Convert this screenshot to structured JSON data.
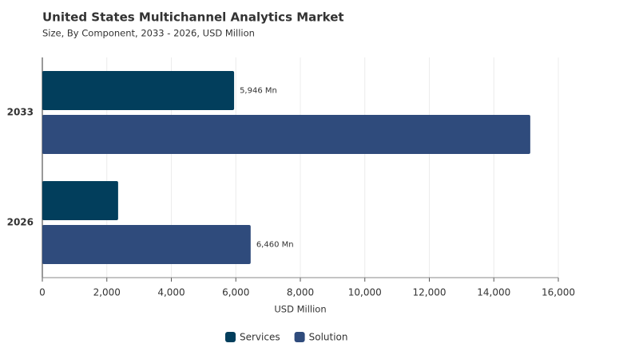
{
  "chart_data": {
    "type": "bar",
    "orientation": "horizontal",
    "title": "United States Multichannel Analytics Market",
    "subtitle": "Size, By Component, 2033 - 2026, USD Million",
    "x_label": "USD Million",
    "categories": [
      "2033",
      "2026"
    ],
    "series": [
      {
        "name": "Services",
        "color": "#023e5c",
        "values": [
          5946,
          2350
        ],
        "value_labels": [
          "5,946 Mn",
          null
        ]
      },
      {
        "name": "Solution",
        "color": "#2f4b7c",
        "values": [
          15130,
          6460
        ],
        "value_labels": [
          null,
          "6,460 Mn"
        ]
      }
    ],
    "xlim": [
      0,
      16000
    ],
    "xticks": [
      0,
      {
        "value": 2000,
        "label": "2,000"
      },
      {
        "value": 4000,
        "label": "4,000"
      },
      {
        "value": 6000,
        "label": "6,000"
      },
      {
        "value": 8000,
        "label": "8,000"
      },
      {
        "value": 10000,
        "label": "10,000"
      },
      {
        "value": 12000,
        "label": "12,000"
      },
      {
        "value": 14000,
        "label": "14,000"
      },
      {
        "value": 16000,
        "label": "16,000"
      }
    ],
    "grid": true,
    "legend": "bottom"
  }
}
